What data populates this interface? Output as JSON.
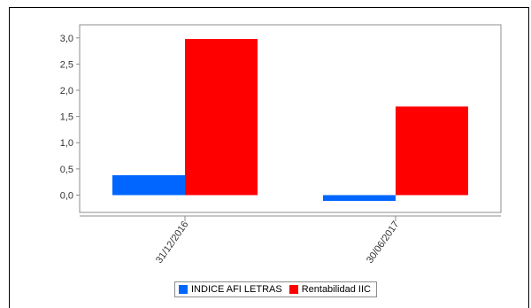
{
  "chart_data": {
    "type": "bar",
    "title": "",
    "xlabel": "",
    "ylabel": "",
    "categories": [
      "31/12/2016",
      "30/06/2017"
    ],
    "series": [
      {
        "name": "INDICE AFI LETRAS",
        "values": [
          0.38,
          -0.11
        ],
        "color": "#0066ff"
      },
      {
        "name": "Rentabilidad IIC",
        "values": [
          2.98,
          1.69
        ],
        "color": "#ff0000"
      }
    ],
    "ylim": [
      -0.33,
      3.25
    ],
    "yticks": [
      0.0,
      0.5,
      1.0,
      1.5,
      2.0,
      2.5,
      3.0
    ],
    "ytick_labels": [
      "0,0",
      "0,5",
      "1,0",
      "1,5",
      "2,0",
      "2,5",
      "3,0"
    ],
    "grid": false,
    "legend_position": "bottom-center"
  }
}
